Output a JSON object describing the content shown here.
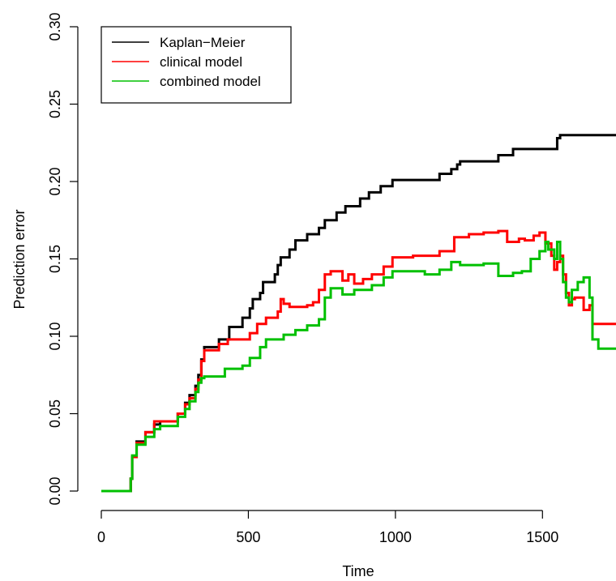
{
  "chart_data": {
    "type": "line",
    "title": "",
    "xlabel": "Time",
    "ylabel": "Prediction error",
    "xlim": [
      0,
      1750
    ],
    "ylim": [
      0,
      0.3
    ],
    "x_ticks": [
      0,
      500,
      1000,
      1500
    ],
    "x_tick_labels": [
      "0",
      "500",
      "1000",
      "1500"
    ],
    "y_ticks": [
      0.0,
      0.05,
      0.1,
      0.15,
      0.2,
      0.25,
      0.3
    ],
    "y_tick_labels": [
      "0.00",
      "0.05",
      "0.10",
      "0.15",
      "0.20",
      "0.25",
      "0.30"
    ],
    "grid": false,
    "legend_position": "top-left",
    "step": true,
    "series": [
      {
        "name": "Kaplan−Meier",
        "color": "#000000",
        "points": [
          [
            0,
            0
          ],
          [
            100,
            0
          ],
          [
            100,
            0.008
          ],
          [
            105,
            0.022
          ],
          [
            120,
            0.032
          ],
          [
            150,
            0.038
          ],
          [
            180,
            0.043
          ],
          [
            200,
            0.045
          ],
          [
            260,
            0.05
          ],
          [
            285,
            0.057
          ],
          [
            300,
            0.062
          ],
          [
            320,
            0.068
          ],
          [
            330,
            0.075
          ],
          [
            340,
            0.085
          ],
          [
            350,
            0.093
          ],
          [
            400,
            0.098
          ],
          [
            435,
            0.106
          ],
          [
            480,
            0.112
          ],
          [
            505,
            0.118
          ],
          [
            515,
            0.124
          ],
          [
            540,
            0.128
          ],
          [
            550,
            0.135
          ],
          [
            590,
            0.14
          ],
          [
            600,
            0.146
          ],
          [
            610,
            0.151
          ],
          [
            640,
            0.156
          ],
          [
            660,
            0.162
          ],
          [
            700,
            0.166
          ],
          [
            740,
            0.17
          ],
          [
            760,
            0.175
          ],
          [
            800,
            0.18
          ],
          [
            830,
            0.184
          ],
          [
            880,
            0.189
          ],
          [
            910,
            0.193
          ],
          [
            950,
            0.197
          ],
          [
            990,
            0.201
          ],
          [
            1150,
            0.205
          ],
          [
            1190,
            0.208
          ],
          [
            1210,
            0.211
          ],
          [
            1220,
            0.213
          ],
          [
            1350,
            0.217
          ],
          [
            1400,
            0.221
          ],
          [
            1550,
            0.228
          ],
          [
            1560,
            0.23
          ],
          [
            1750,
            0.23
          ]
        ]
      },
      {
        "name": "clinical model",
        "color": "#ff0000",
        "points": [
          [
            0,
            0
          ],
          [
            100,
            0
          ],
          [
            100,
            0.008
          ],
          [
            105,
            0.022
          ],
          [
            120,
            0.031
          ],
          [
            150,
            0.038
          ],
          [
            180,
            0.045
          ],
          [
            200,
            0.045
          ],
          [
            260,
            0.05
          ],
          [
            285,
            0.056
          ],
          [
            300,
            0.06
          ],
          [
            320,
            0.066
          ],
          [
            330,
            0.072
          ],
          [
            340,
            0.084
          ],
          [
            350,
            0.091
          ],
          [
            400,
            0.095
          ],
          [
            430,
            0.098
          ],
          [
            480,
            0.098
          ],
          [
            505,
            0.102
          ],
          [
            530,
            0.108
          ],
          [
            560,
            0.112
          ],
          [
            600,
            0.116
          ],
          [
            610,
            0.124
          ],
          [
            620,
            0.121
          ],
          [
            640,
            0.119
          ],
          [
            700,
            0.12
          ],
          [
            720,
            0.122
          ],
          [
            740,
            0.13
          ],
          [
            760,
            0.14
          ],
          [
            780,
            0.142
          ],
          [
            820,
            0.136
          ],
          [
            840,
            0.14
          ],
          [
            860,
            0.134
          ],
          [
            890,
            0.137
          ],
          [
            920,
            0.14
          ],
          [
            960,
            0.145
          ],
          [
            990,
            0.151
          ],
          [
            1060,
            0.152
          ],
          [
            1150,
            0.155
          ],
          [
            1200,
            0.164
          ],
          [
            1250,
            0.166
          ],
          [
            1300,
            0.167
          ],
          [
            1350,
            0.168
          ],
          [
            1380,
            0.161
          ],
          [
            1420,
            0.163
          ],
          [
            1440,
            0.162
          ],
          [
            1470,
            0.165
          ],
          [
            1490,
            0.167
          ],
          [
            1510,
            0.16
          ],
          [
            1530,
            0.152
          ],
          [
            1540,
            0.143
          ],
          [
            1550,
            0.148
          ],
          [
            1560,
            0.152
          ],
          [
            1570,
            0.14
          ],
          [
            1580,
            0.128
          ],
          [
            1590,
            0.12
          ],
          [
            1600,
            0.124
          ],
          [
            1610,
            0.125
          ],
          [
            1640,
            0.117
          ],
          [
            1660,
            0.12
          ],
          [
            1670,
            0.108
          ],
          [
            1750,
            0.108
          ]
        ]
      },
      {
        "name": "combined model",
        "color": "#00c000",
        "points": [
          [
            0,
            0
          ],
          [
            100,
            0
          ],
          [
            100,
            0.008
          ],
          [
            105,
            0.023
          ],
          [
            120,
            0.03
          ],
          [
            150,
            0.035
          ],
          [
            180,
            0.04
          ],
          [
            200,
            0.042
          ],
          [
            260,
            0.048
          ],
          [
            285,
            0.053
          ],
          [
            300,
            0.058
          ],
          [
            320,
            0.064
          ],
          [
            330,
            0.07
          ],
          [
            340,
            0.073
          ],
          [
            350,
            0.074
          ],
          [
            420,
            0.079
          ],
          [
            480,
            0.081
          ],
          [
            505,
            0.086
          ],
          [
            540,
            0.093
          ],
          [
            560,
            0.098
          ],
          [
            620,
            0.101
          ],
          [
            660,
            0.104
          ],
          [
            700,
            0.107
          ],
          [
            740,
            0.111
          ],
          [
            760,
            0.125
          ],
          [
            780,
            0.131
          ],
          [
            820,
            0.127
          ],
          [
            860,
            0.13
          ],
          [
            920,
            0.133
          ],
          [
            960,
            0.138
          ],
          [
            990,
            0.142
          ],
          [
            1100,
            0.14
          ],
          [
            1150,
            0.143
          ],
          [
            1190,
            0.148
          ],
          [
            1220,
            0.146
          ],
          [
            1300,
            0.147
          ],
          [
            1350,
            0.139
          ],
          [
            1400,
            0.141
          ],
          [
            1430,
            0.142
          ],
          [
            1460,
            0.15
          ],
          [
            1490,
            0.155
          ],
          [
            1510,
            0.161
          ],
          [
            1520,
            0.156
          ],
          [
            1540,
            0.15
          ],
          [
            1550,
            0.161
          ],
          [
            1560,
            0.15
          ],
          [
            1570,
            0.135
          ],
          [
            1580,
            0.125
          ],
          [
            1590,
            0.122
          ],
          [
            1600,
            0.13
          ],
          [
            1620,
            0.135
          ],
          [
            1640,
            0.138
          ],
          [
            1660,
            0.125
          ],
          [
            1670,
            0.098
          ],
          [
            1690,
            0.092
          ],
          [
            1750,
            0.092
          ]
        ]
      }
    ]
  }
}
